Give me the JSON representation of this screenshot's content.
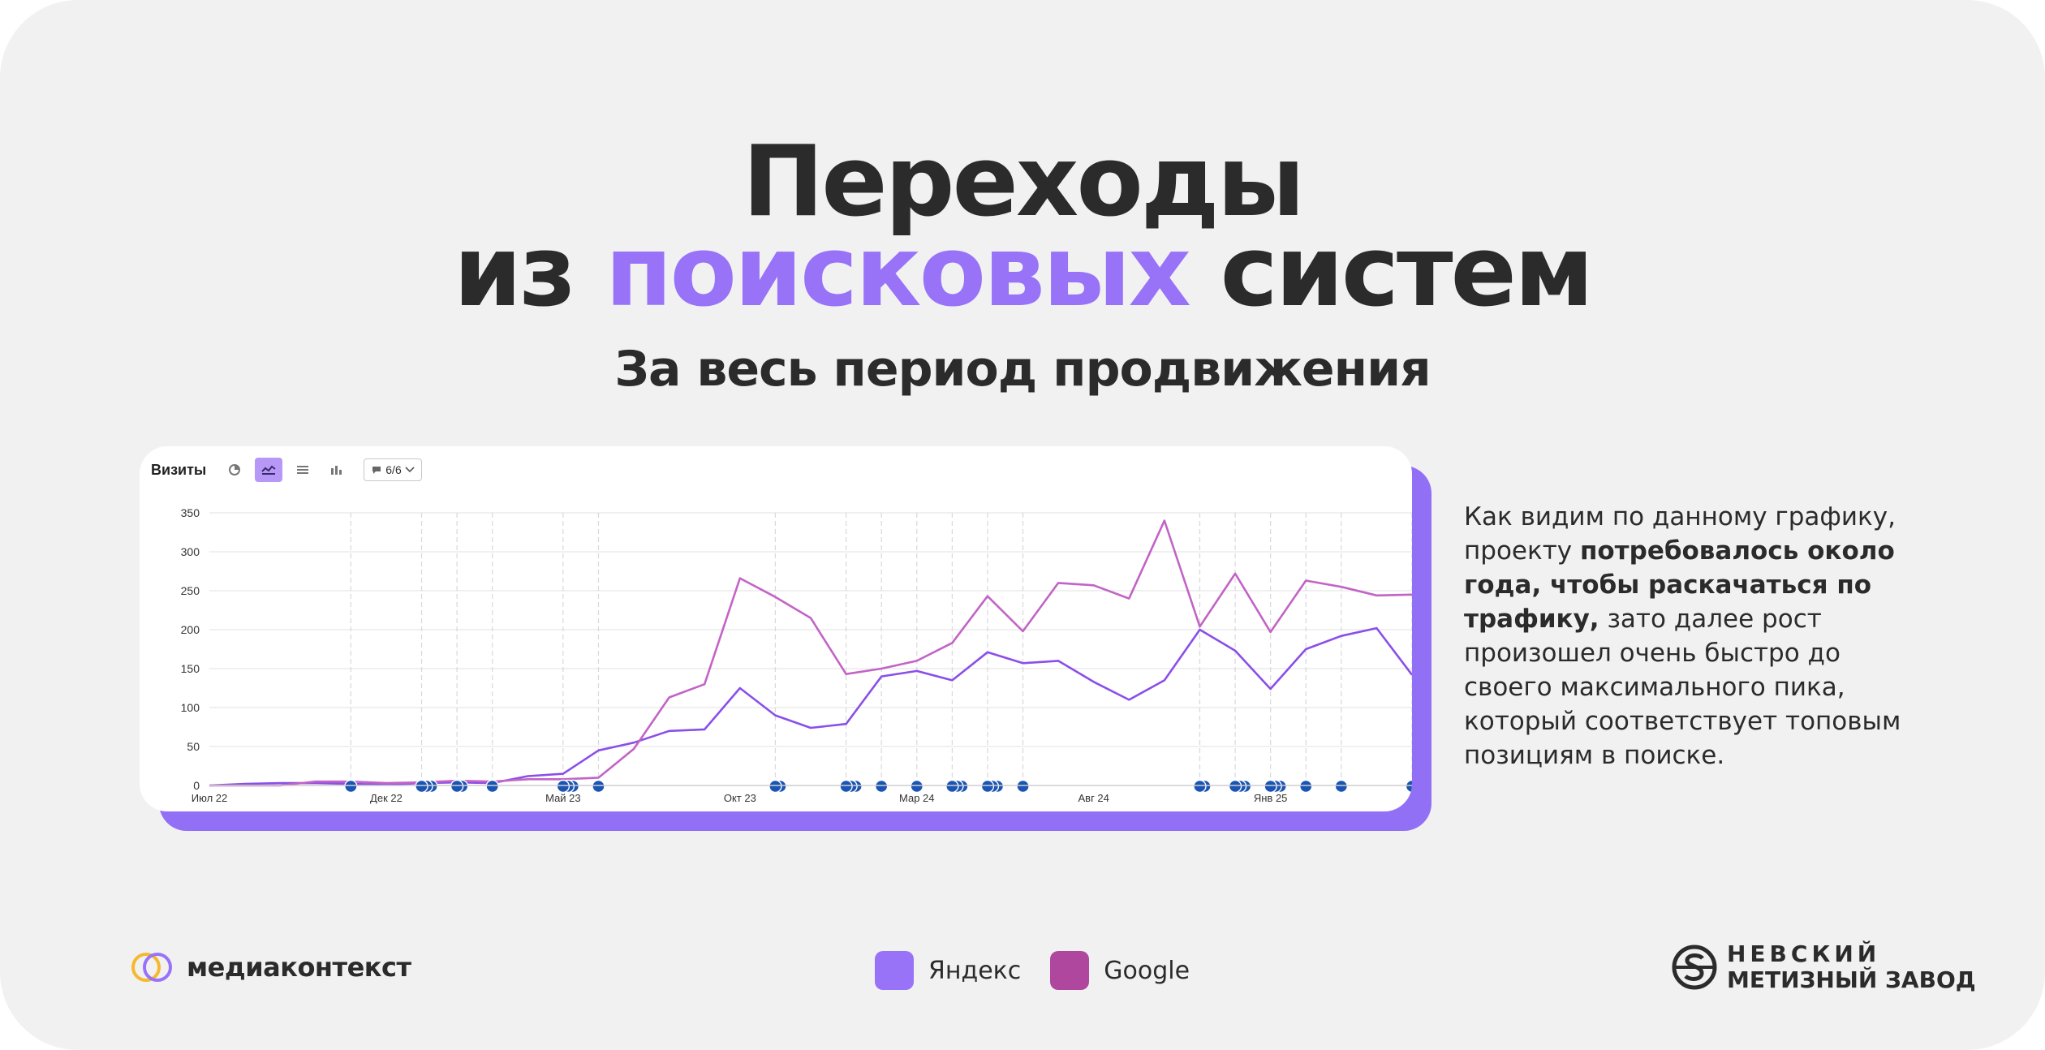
{
  "slide": {
    "title_line1": "Переходы",
    "title_line2_pre": "из ",
    "title_line2_accent": "поисковых",
    "title_line2_post": " систем",
    "subtitle": "За весь период продвижения"
  },
  "toolbar": {
    "label": "Визиты",
    "segments_value": "6/6"
  },
  "description": {
    "part1": "Как видим по данному графику, проекту ",
    "bold": "потребовалось около года, чтобы раскачаться по трафику,",
    "part2": " зато далее рост произошел очень быстро до своего максимального пика, который соответствует топовым позициям в поиске."
  },
  "footer": {
    "brand_left": "медиаконтекст",
    "brand_right_line1": "НЕВСКИЙ",
    "brand_right_line2": "МЕТИЗНЫЙ ЗАВОД"
  },
  "legend": [
    {
      "name": "Яндекс",
      "color": "#9873f8"
    },
    {
      "name": "Google",
      "color": "#b0479e"
    }
  ],
  "colors": {
    "accent": "#9873f8",
    "yandex_line": "#8a4fe8",
    "google_line": "#c264c6",
    "annotation": "#1a54b4"
  },
  "chart_data": {
    "type": "line",
    "ylim": [
      0,
      350
    ],
    "yticks": [
      0,
      50,
      100,
      150,
      200,
      250,
      300,
      350
    ],
    "x_tick_labels": [
      {
        "label": "Июл 22",
        "index": 0
      },
      {
        "label": "Дек 22",
        "index": 5
      },
      {
        "label": "Май 23",
        "index": 10
      },
      {
        "label": "Окт 23",
        "index": 15
      },
      {
        "label": "Мар 24",
        "index": 20
      },
      {
        "label": "Авг 24",
        "index": 25
      },
      {
        "label": "Янв 25",
        "index": 30
      }
    ],
    "points_count": 35,
    "series": [
      {
        "name": "Яндекс",
        "values": [
          0,
          2,
          3,
          3,
          2,
          1,
          3,
          4,
          3,
          12,
          15,
          45,
          55,
          70,
          72,
          125,
          90,
          74,
          79,
          140,
          147,
          135,
          171,
          157,
          160,
          133,
          110,
          135,
          200,
          173,
          124,
          175,
          192,
          202,
          142
        ]
      },
      {
        "name": "Google",
        "values": [
          0,
          0,
          0,
          5,
          5,
          3,
          4,
          6,
          5,
          8,
          8,
          10,
          47,
          113,
          130,
          266,
          242,
          215,
          143,
          150,
          160,
          183,
          243,
          198,
          260,
          257,
          240,
          340,
          204,
          272,
          197,
          263,
          255,
          244,
          245
        ]
      }
    ],
    "annotation_markers": [
      {
        "index": 4,
        "count": 1
      },
      {
        "index": 6,
        "count": 3
      },
      {
        "index": 7,
        "count": 2
      },
      {
        "index": 8,
        "count": 1
      },
      {
        "index": 10,
        "count": 3
      },
      {
        "index": 11,
        "count": 1
      },
      {
        "index": 16,
        "count": 2
      },
      {
        "index": 18,
        "count": 3
      },
      {
        "index": 19,
        "count": 1
      },
      {
        "index": 20,
        "count": 1
      },
      {
        "index": 21,
        "count": 3
      },
      {
        "index": 22,
        "count": 3
      },
      {
        "index": 23,
        "count": 1
      },
      {
        "index": 28,
        "count": 2
      },
      {
        "index": 29,
        "count": 3
      },
      {
        "index": 30,
        "count": 3
      },
      {
        "index": 31,
        "count": 1
      },
      {
        "index": 32,
        "count": 1
      },
      {
        "index": 34,
        "count": 1
      }
    ],
    "grid": true
  }
}
